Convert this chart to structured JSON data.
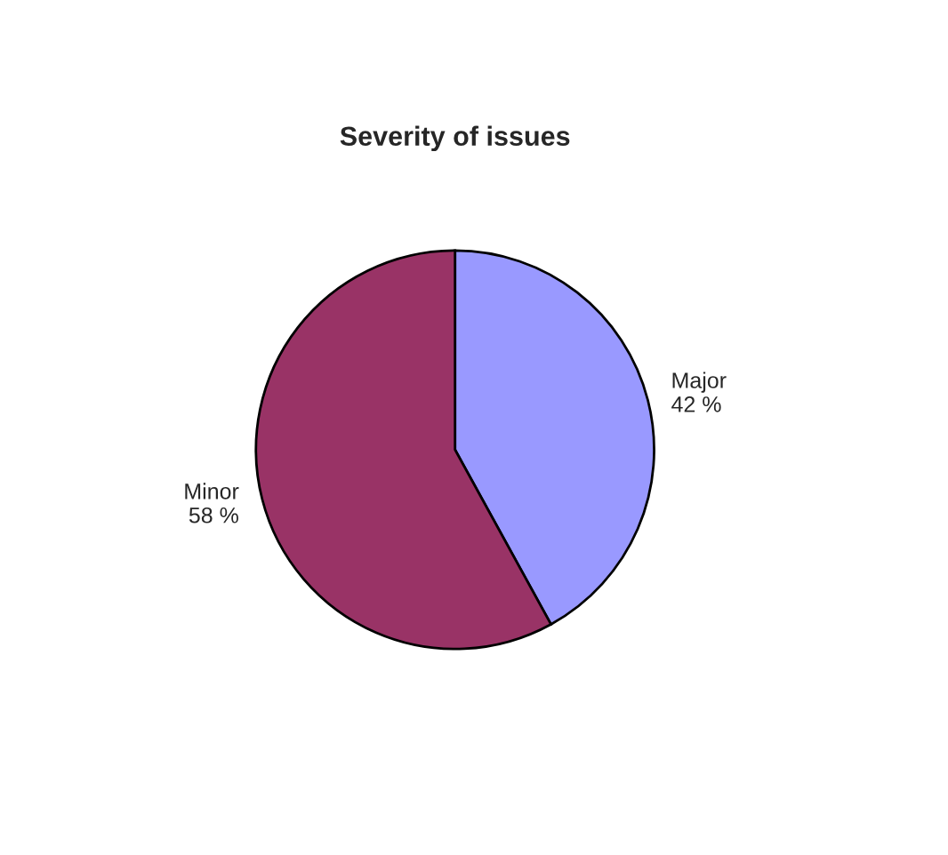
{
  "chart_data": {
    "type": "pie",
    "title": "Severity of issues",
    "categories": [
      "Major",
      "Minor"
    ],
    "values": [
      42,
      58
    ],
    "colors": [
      "#9999ff",
      "#993366"
    ],
    "value_labels": [
      "42 %",
      "58 %"
    ],
    "legend": false
  }
}
